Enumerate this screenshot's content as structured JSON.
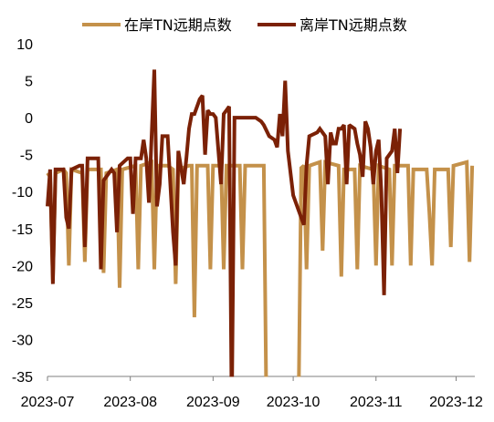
{
  "chart_data": {
    "type": "line",
    "title": "",
    "xlabel": "",
    "ylabel": "",
    "ylim": [
      -35,
      10
    ],
    "yticks": [
      10,
      5,
      0,
      -5,
      -10,
      -15,
      -20,
      -25,
      -30,
      -35
    ],
    "xlim": [
      "2023-07-01",
      "2023-12-08"
    ],
    "xticks": [
      "2023-07",
      "2023-08",
      "2023-09",
      "2023-10",
      "2023-11",
      "2023-12"
    ],
    "grid": false,
    "legend_position": "top",
    "series": [
      {
        "name": "在岸TN远期点数",
        "color": "#C4914A",
        "points": [
          [
            "2023-07-01",
            -7.5
          ],
          [
            "2023-07-02",
            -8.0
          ],
          [
            "2023-07-03",
            -22.0
          ],
          [
            "2023-07-04",
            -7.5
          ],
          [
            "2023-07-07",
            -7.0
          ],
          [
            "2023-07-08",
            -7.5
          ],
          [
            "2023-07-09",
            -20.0
          ],
          [
            "2023-07-10",
            -7.0
          ],
          [
            "2023-07-14",
            -7.5
          ],
          [
            "2023-07-15",
            -19.5
          ],
          [
            "2023-07-16",
            -7.0
          ],
          [
            "2023-07-21",
            -7.0
          ],
          [
            "2023-07-22",
            -21.0
          ],
          [
            "2023-07-23",
            -7.5
          ],
          [
            "2023-07-27",
            -7.0
          ],
          [
            "2023-07-28",
            -23.0
          ],
          [
            "2023-07-29",
            -7.0
          ],
          [
            "2023-08-03",
            -6.5
          ],
          [
            "2023-08-04",
            -20.5
          ],
          [
            "2023-08-05",
            -6.5
          ],
          [
            "2023-08-09",
            -6.0
          ],
          [
            "2023-08-10",
            -20.5
          ],
          [
            "2023-08-11",
            -6.5
          ],
          [
            "2023-08-15",
            -6.5
          ],
          [
            "2023-08-17",
            -7.0
          ],
          [
            "2023-08-18",
            -22.5
          ],
          [
            "2023-08-19",
            -7.0
          ],
          [
            "2023-08-23",
            -6.5
          ],
          [
            "2023-08-24",
            -6.5
          ],
          [
            "2023-08-25",
            -27.0
          ],
          [
            "2023-08-26",
            -6.5
          ],
          [
            "2023-08-30",
            -6.5
          ],
          [
            "2023-08-31",
            -20.5
          ],
          [
            "2023-09-01",
            -6.5
          ],
          [
            "2023-09-04",
            -6.5
          ],
          [
            "2023-09-05",
            -20.5
          ],
          [
            "2023-09-06",
            -6.5
          ],
          [
            "2023-09-11",
            -6.5
          ],
          [
            "2023-09-12",
            -20.5
          ],
          [
            "2023-09-13",
            -6.5
          ],
          [
            "2023-09-19",
            -6.5
          ],
          [
            "2023-09-20",
            -6.5
          ],
          [
            "2023-09-21",
            -40.0
          ],
          [
            "2023-10-03",
            -40.0
          ],
          [
            "2023-10-04",
            -6.8
          ],
          [
            "2023-10-05",
            -6.5
          ],
          [
            "2023-10-06",
            -20.5
          ],
          [
            "2023-10-07",
            -6.5
          ],
          [
            "2023-10-11",
            -6.0
          ],
          [
            "2023-10-12",
            -18.0
          ],
          [
            "2023-10-13",
            -6.0
          ],
          [
            "2023-10-18",
            -6.5
          ],
          [
            "2023-10-19",
            -21.5
          ],
          [
            "2023-10-20",
            -7.0
          ],
          [
            "2023-10-24",
            -7.0
          ],
          [
            "2023-10-25",
            -20.5
          ],
          [
            "2023-10-26",
            -6.5
          ],
          [
            "2023-10-31",
            -7.0
          ],
          [
            "2023-11-01",
            -20.0
          ],
          [
            "2023-11-02",
            -6.5
          ],
          [
            "2023-11-06",
            -7.0
          ],
          [
            "2023-11-07",
            -20.0
          ],
          [
            "2023-11-08",
            -6.5
          ],
          [
            "2023-11-13",
            -6.5
          ],
          [
            "2023-11-14",
            -20.0
          ],
          [
            "2023-11-15",
            -7.0
          ],
          [
            "2023-11-20",
            -7.0
          ],
          [
            "2023-11-21",
            -13.0
          ],
          [
            "2023-11-22",
            -20.0
          ],
          [
            "2023-11-23",
            -7.0
          ],
          [
            "2023-11-28",
            -7.0
          ],
          [
            "2023-11-29",
            -17.5
          ],
          [
            "2023-11-30",
            -6.5
          ],
          [
            "2023-12-05",
            -6.0
          ],
          [
            "2023-12-06",
            -19.5
          ],
          [
            "2023-12-07",
            -6.5
          ]
        ]
      },
      {
        "name": "离岸TN远期点数",
        "color": "#7B2106",
        "points": [
          [
            "2023-07-01",
            -12.0
          ],
          [
            "2023-07-02",
            -7.0
          ],
          [
            "2023-07-03",
            -22.5
          ],
          [
            "2023-07-04",
            -7.0
          ],
          [
            "2023-07-07",
            -7.0
          ],
          [
            "2023-07-08",
            -13.5
          ],
          [
            "2023-07-09",
            -15.0
          ],
          [
            "2023-07-10",
            -7.0
          ],
          [
            "2023-07-13",
            -6.5
          ],
          [
            "2023-07-14",
            -6.5
          ],
          [
            "2023-07-15",
            -17.5
          ],
          [
            "2023-07-16",
            -5.5
          ],
          [
            "2023-07-19",
            -5.5
          ],
          [
            "2023-07-20",
            -5.5
          ],
          [
            "2023-07-21",
            -20.5
          ],
          [
            "2023-07-22",
            -8.5
          ],
          [
            "2023-07-25",
            -7.0
          ],
          [
            "2023-07-26",
            -7.5
          ],
          [
            "2023-07-27",
            -15.5
          ],
          [
            "2023-07-28",
            -6.5
          ],
          [
            "2023-07-31",
            -5.5
          ],
          [
            "2023-08-01",
            -5.5
          ],
          [
            "2023-08-02",
            -13.0
          ],
          [
            "2023-08-03",
            -5.5
          ],
          [
            "2023-08-05",
            -5.5
          ],
          [
            "2023-08-06",
            -3.0
          ],
          [
            "2023-08-07",
            -5.5
          ],
          [
            "2023-08-08",
            -11.5
          ],
          [
            "2023-08-10",
            6.5
          ],
          [
            "2023-08-11",
            -12.0
          ],
          [
            "2023-08-12",
            -9.0
          ],
          [
            "2023-08-13",
            -2.5
          ],
          [
            "2023-08-15",
            -2.5
          ],
          [
            "2023-08-17",
            -15.5
          ],
          [
            "2023-08-18",
            -20.0
          ],
          [
            "2023-08-19",
            -4.5
          ],
          [
            "2023-08-21",
            -9.0
          ],
          [
            "2023-08-22",
            -5.5
          ],
          [
            "2023-08-23",
            -1.5
          ],
          [
            "2023-08-24",
            0.5
          ],
          [
            "2023-08-25",
            0.5
          ],
          [
            "2023-08-27",
            2.5
          ],
          [
            "2023-08-28",
            3.0
          ],
          [
            "2023-08-29",
            -5.0
          ],
          [
            "2023-08-30",
            1.0
          ],
          [
            "2023-08-31",
            0.5
          ],
          [
            "2023-09-01",
            0.5
          ],
          [
            "2023-09-02",
            0.0
          ],
          [
            "2023-09-04",
            -9.0
          ],
          [
            "2023-09-05",
            0.5
          ],
          [
            "2023-09-06",
            1.0
          ],
          [
            "2023-09-07",
            1.5
          ],
          [
            "2023-09-08",
            -40.0
          ],
          [
            "2023-09-09",
            0.0
          ],
          [
            "2023-09-15",
            0.0
          ],
          [
            "2023-09-16",
            0.0
          ],
          [
            "2023-09-17",
            0.0
          ],
          [
            "2023-09-19",
            -0.5
          ],
          [
            "2023-09-20",
            -1.0
          ],
          [
            "2023-09-22",
            -2.5
          ],
          [
            "2023-09-24",
            -3.0
          ],
          [
            "2023-09-25",
            -4.0
          ],
          [
            "2023-09-26",
            0.5
          ],
          [
            "2023-09-27",
            -2.5
          ],
          [
            "2023-09-28",
            5.0
          ],
          [
            "2023-09-29",
            -4.5
          ],
          [
            "2023-10-01",
            -10.5
          ],
          [
            "2023-10-03",
            -12.5
          ],
          [
            "2023-10-05",
            -14.5
          ],
          [
            "2023-10-06",
            -6.5
          ],
          [
            "2023-10-07",
            -2.5
          ],
          [
            "2023-10-10",
            -2.0
          ],
          [
            "2023-10-11",
            -1.5
          ],
          [
            "2023-10-13",
            -2.5
          ],
          [
            "2023-10-14",
            -9.0
          ],
          [
            "2023-10-15",
            -2.0
          ],
          [
            "2023-10-16",
            -3.5
          ],
          [
            "2023-10-17",
            -3.5
          ],
          [
            "2023-10-18",
            -1.5
          ],
          [
            "2023-10-19",
            -1.5
          ],
          [
            "2023-10-20",
            -1.0
          ],
          [
            "2023-10-21",
            -9.0
          ],
          [
            "2023-10-22",
            -1.0
          ],
          [
            "2023-10-24",
            -1.5
          ],
          [
            "2023-10-25",
            -3.5
          ],
          [
            "2023-10-26",
            -5.0
          ],
          [
            "2023-10-27",
            -8.0
          ],
          [
            "2023-10-28",
            -0.5
          ],
          [
            "2023-10-29",
            -1.5
          ],
          [
            "2023-10-30",
            -4.0
          ],
          [
            "2023-10-31",
            -9.0
          ],
          [
            "2023-11-01",
            -4.5
          ],
          [
            "2023-11-02",
            -3.0
          ],
          [
            "2023-11-03",
            -10.0
          ],
          [
            "2023-11-04",
            -24.0
          ],
          [
            "2023-11-05",
            -5.5
          ],
          [
            "2023-11-06",
            -5.0
          ],
          [
            "2023-11-07",
            -4.5
          ],
          [
            "2023-11-08",
            -1.5
          ],
          [
            "2023-11-09",
            -7.5
          ],
          [
            "2023-11-10",
            -1.5
          ]
        ]
      }
    ]
  }
}
